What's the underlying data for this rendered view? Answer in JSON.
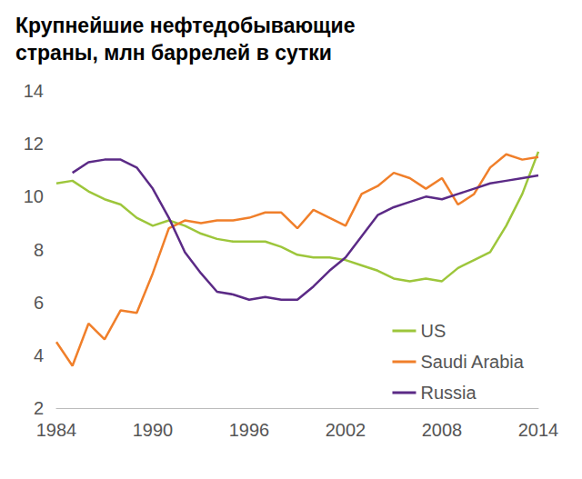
{
  "chart_data": {
    "type": "line",
    "title": "Крупнейшие нефтедобывающие\nстраны, млн баррелей в сутки",
    "x": [
      1984,
      1985,
      1986,
      1987,
      1988,
      1989,
      1990,
      1991,
      1992,
      1993,
      1994,
      1995,
      1996,
      1997,
      1998,
      1999,
      2000,
      2001,
      2002,
      2003,
      2004,
      2005,
      2006,
      2007,
      2008,
      2009,
      2010,
      2011,
      2012,
      2013,
      2014
    ],
    "series": [
      {
        "name": "US",
        "color": "#9dc63b",
        "values": [
          10.5,
          10.6,
          10.2,
          9.9,
          9.7,
          9.2,
          8.9,
          9.1,
          8.9,
          8.6,
          8.4,
          8.3,
          8.3,
          8.3,
          8.1,
          7.8,
          7.7,
          7.7,
          7.6,
          7.4,
          7.2,
          6.9,
          6.8,
          6.9,
          6.8,
          7.3,
          7.6,
          7.9,
          8.9,
          10.1,
          11.7
        ]
      },
      {
        "name": "Saudi Arabia",
        "color": "#f07f2a",
        "values": [
          4.5,
          3.6,
          5.2,
          4.6,
          5.7,
          5.6,
          7.1,
          8.8,
          9.1,
          9.0,
          9.1,
          9.1,
          9.2,
          9.4,
          9.4,
          8.8,
          9.5,
          9.2,
          8.9,
          10.1,
          10.4,
          10.9,
          10.7,
          10.3,
          10.7,
          9.7,
          10.1,
          11.1,
          11.6,
          11.4,
          11.5
        ]
      },
      {
        "name": "Russia",
        "color": "#5b2a86",
        "values": [
          null,
          10.9,
          11.3,
          11.4,
          11.4,
          11.1,
          10.3,
          9.2,
          7.9,
          7.1,
          6.4,
          6.3,
          6.1,
          6.2,
          6.1,
          6.1,
          6.6,
          7.2,
          7.7,
          8.5,
          9.3,
          9.6,
          9.8,
          10.0,
          9.9,
          10.1,
          10.3,
          10.5,
          10.6,
          10.7,
          10.8
        ]
      }
    ],
    "xlim": [
      1984,
      2014
    ],
    "xticks": [
      1984,
      1990,
      1996,
      2002,
      2008,
      2014
    ],
    "ylim": [
      2,
      14
    ],
    "yticks": [
      2,
      4,
      6,
      8,
      10,
      12,
      14
    ],
    "grid": false,
    "legend": "lower right"
  }
}
